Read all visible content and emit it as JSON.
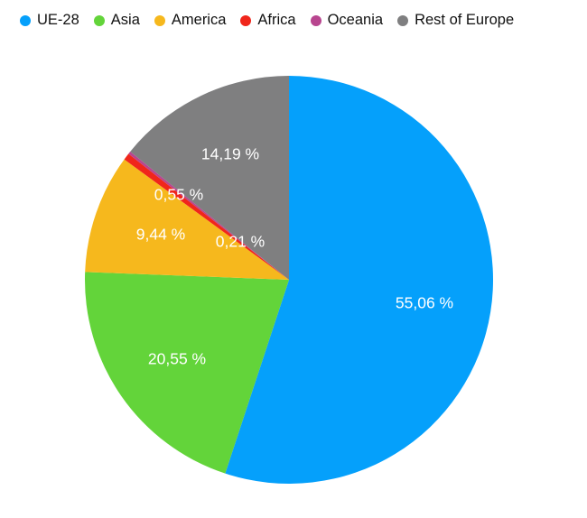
{
  "chart_data": {
    "type": "pie",
    "legend_position": "top-left",
    "slices": [
      {
        "name": "UE-28",
        "value": 55.06,
        "label": "55,06 %",
        "color": "#05a0fb"
      },
      {
        "name": "Asia",
        "value": 20.55,
        "label": "20,55 %",
        "color": "#63d43a"
      },
      {
        "name": "America",
        "value": 9.44,
        "label": "9,44 %",
        "color": "#f6b81d"
      },
      {
        "name": "Africa",
        "value": 0.55,
        "label": "0,55 %",
        "color": "#f0261b"
      },
      {
        "name": "Oceania",
        "value": 0.21,
        "label": "0,21 %",
        "color": "#b8458f"
      },
      {
        "name": "Rest of Europe",
        "value": 14.19,
        "label": "14,19 %",
        "color": "#7f7f80"
      }
    ]
  }
}
